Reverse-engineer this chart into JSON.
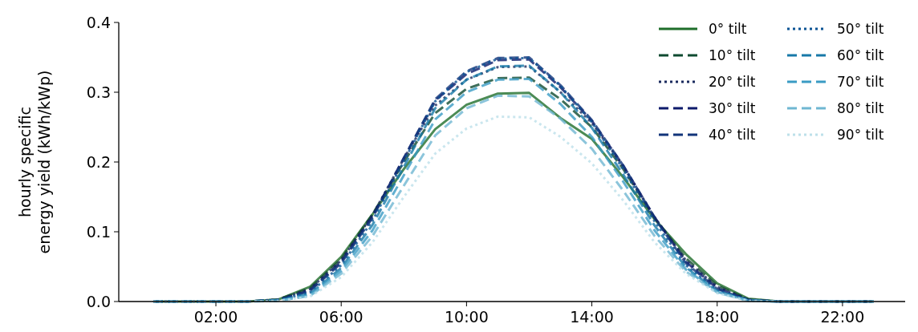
{
  "chart_data": {
    "type": "line",
    "ylabel": "hourly specific\nenergy yield (kWh/kWp)",
    "x": [
      0,
      1,
      2,
      3,
      4,
      5,
      6,
      7,
      8,
      9,
      10,
      11,
      12,
      13,
      14,
      15,
      16,
      17,
      18,
      19,
      20,
      21,
      22,
      23
    ],
    "xlim": [
      -1.1,
      24
    ],
    "xticks": [
      {
        "value": 2,
        "label": "02:00"
      },
      {
        "value": 6,
        "label": "06:00"
      },
      {
        "value": 10,
        "label": "10:00"
      },
      {
        "value": 14,
        "label": "14:00"
      },
      {
        "value": 18,
        "label": "18:00"
      },
      {
        "value": 22,
        "label": "22:00"
      }
    ],
    "ylim": [
      0,
      0.4
    ],
    "yticks": [
      {
        "value": 0,
        "label": "0.0"
      },
      {
        "value": 0.1,
        "label": "0.1"
      },
      {
        "value": 0.2,
        "label": "0.2"
      },
      {
        "value": 0.3,
        "label": "0.3"
      },
      {
        "value": 0.4,
        "label": "0.4"
      }
    ],
    "grid": false,
    "legend": "top right",
    "marker": "none",
    "series": [
      {
        "name": "0° tilt",
        "color": "#1f6e2a",
        "line_style": "solid",
        "values": [
          0,
          0,
          0,
          0,
          0.003,
          0.021,
          0.064,
          0.125,
          0.19,
          0.247,
          0.282,
          0.298,
          0.299,
          0.263,
          0.233,
          0.178,
          0.118,
          0.068,
          0.026,
          0.004,
          0,
          0,
          0,
          0
        ]
      },
      {
        "name": "10° tilt",
        "color": "#0f4a30",
        "line_style": "dashed",
        "values": [
          0,
          0,
          0,
          0,
          0.003,
          0.019,
          0.061,
          0.125,
          0.2,
          0.27,
          0.305,
          0.32,
          0.321,
          0.29,
          0.25,
          0.19,
          0.12,
          0.062,
          0.023,
          0.003,
          0,
          0,
          0,
          0
        ]
      },
      {
        "name": "20° tilt",
        "color": "#1a2a5e",
        "line_style": "dotted",
        "values": [
          0,
          0,
          0,
          0,
          0.003,
          0.018,
          0.059,
          0.124,
          0.205,
          0.281,
          0.318,
          0.336,
          0.337,
          0.3,
          0.256,
          0.194,
          0.121,
          0.059,
          0.021,
          0.003,
          0,
          0,
          0,
          0
        ]
      },
      {
        "name": "30° tilt",
        "color": "#0d1a6b",
        "line_style": "dashed",
        "values": [
          0,
          0,
          0,
          0,
          0.002,
          0.016,
          0.057,
          0.122,
          0.206,
          0.288,
          0.326,
          0.346,
          0.347,
          0.307,
          0.259,
          0.195,
          0.121,
          0.057,
          0.019,
          0.002,
          0,
          0,
          0,
          0
        ]
      },
      {
        "name": "40° tilt",
        "color": "#12357a",
        "line_style": "dashed",
        "values": [
          0,
          0,
          0,
          0,
          0.002,
          0.015,
          0.055,
          0.12,
          0.205,
          0.29,
          0.33,
          0.349,
          0.35,
          0.31,
          0.26,
          0.195,
          0.12,
          0.055,
          0.018,
          0.002,
          0,
          0,
          0,
          0
        ]
      },
      {
        "name": "50° tilt",
        "color": "#0b5394",
        "line_style": "dotted",
        "values": [
          0,
          0,
          0,
          0,
          0.002,
          0.013,
          0.052,
          0.116,
          0.201,
          0.287,
          0.329,
          0.348,
          0.349,
          0.309,
          0.257,
          0.19,
          0.115,
          0.052,
          0.016,
          0.002,
          0,
          0,
          0,
          0
        ]
      },
      {
        "name": "60° tilt",
        "color": "#1779a8",
        "line_style": "dashed",
        "values": [
          0,
          0,
          0,
          0,
          0.002,
          0.011,
          0.048,
          0.11,
          0.193,
          0.277,
          0.318,
          0.337,
          0.338,
          0.3,
          0.249,
          0.182,
          0.109,
          0.049,
          0.015,
          0.002,
          0,
          0,
          0,
          0
        ]
      },
      {
        "name": "70° tilt",
        "color": "#3a9bc4",
        "line_style": "dashed",
        "values": [
          0,
          0,
          0,
          0,
          0.001,
          0.009,
          0.044,
          0.102,
          0.181,
          0.261,
          0.3,
          0.318,
          0.319,
          0.283,
          0.236,
          0.172,
          0.102,
          0.046,
          0.014,
          0.001,
          0,
          0,
          0,
          0
        ]
      },
      {
        "name": "80° tilt",
        "color": "#6fb7d2",
        "line_style": "dashed",
        "values": [
          0,
          0,
          0,
          0,
          0.001,
          0.008,
          0.04,
          0.094,
          0.166,
          0.238,
          0.277,
          0.295,
          0.294,
          0.262,
          0.219,
          0.159,
          0.094,
          0.043,
          0.013,
          0.001,
          0,
          0,
          0,
          0
        ]
      },
      {
        "name": "90° tilt",
        "color": "#bde0ea",
        "line_style": "dotted",
        "values": [
          0,
          0,
          0,
          0,
          0.001,
          0.007,
          0.035,
          0.085,
          0.15,
          0.212,
          0.248,
          0.265,
          0.264,
          0.236,
          0.198,
          0.145,
          0.085,
          0.04,
          0.012,
          0.001,
          0,
          0,
          0,
          0
        ]
      }
    ]
  }
}
